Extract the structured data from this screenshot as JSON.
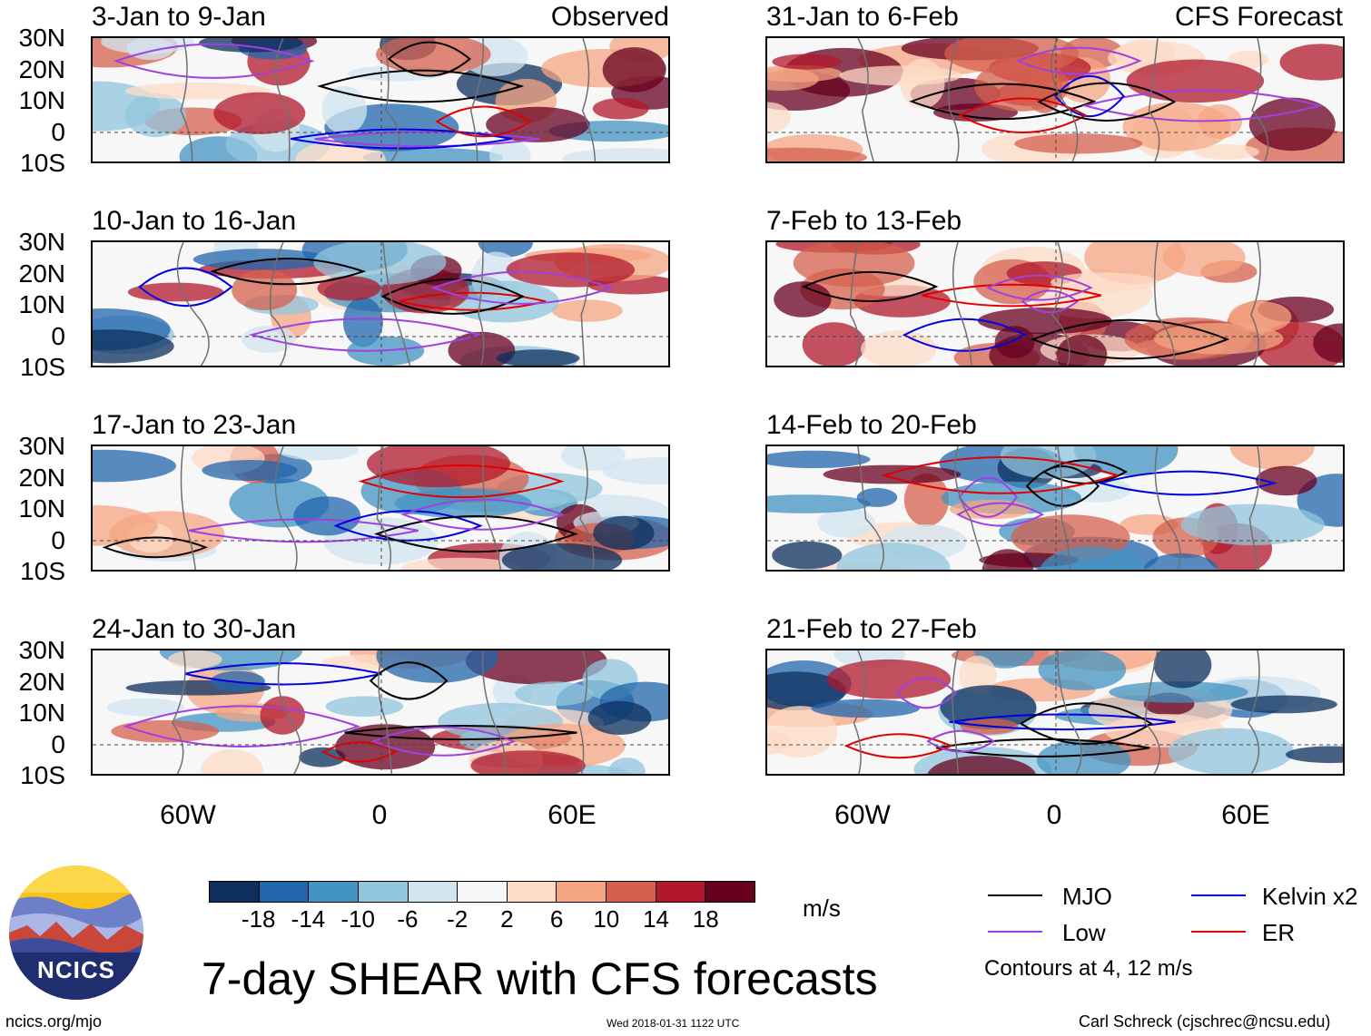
{
  "title": "7-day SHEAR with CFS forecasts",
  "observed_label": "Observed",
  "forecast_label": "CFS Forecast",
  "latitude_labels": [
    "30N",
    "20N",
    "10N",
    "0",
    "10S"
  ],
  "longitude_labels": [
    "60W",
    "0",
    "60E"
  ],
  "panels_left": [
    {
      "title": "3-Jan to 9-Jan"
    },
    {
      "title": "10-Jan to 16-Jan"
    },
    {
      "title": "17-Jan to 23-Jan"
    },
    {
      "title": "24-Jan to 30-Jan"
    }
  ],
  "panels_right": [
    {
      "title": "31-Jan to 6-Feb"
    },
    {
      "title": "7-Feb to 13-Feb"
    },
    {
      "title": "14-Feb to 20-Feb"
    },
    {
      "title": "21-Feb to 27-Feb"
    }
  ],
  "colorbar": {
    "colors": [
      "#0c2f5e",
      "#2166ac",
      "#4393c3",
      "#92c5de",
      "#d1e5f0",
      "#f7f7f7",
      "#fddbc7",
      "#f4a582",
      "#d6604d",
      "#b2182b",
      "#67001f"
    ],
    "ticks": [
      "-18",
      "-14",
      "-10",
      "-6",
      "-2",
      "2",
      "6",
      "10",
      "14",
      "18"
    ],
    "units": "m/s"
  },
  "legend": {
    "items": [
      {
        "label": "MJO",
        "color": "#000000"
      },
      {
        "label": "Low",
        "color": "#a040e0"
      },
      {
        "label": "Kelvin x2",
        "color": "#0000e0"
      },
      {
        "label": "ER",
        "color": "#e00000"
      }
    ],
    "note": "Contours at 4, 12 m/s"
  },
  "logo_text": "NCICS",
  "footer": {
    "site": "ncics.org/mjo",
    "timestamp": "Wed 2018-01-31 1122 UTC",
    "author": "Carl Schreck (cjschrec@ncsu.edu)"
  }
}
